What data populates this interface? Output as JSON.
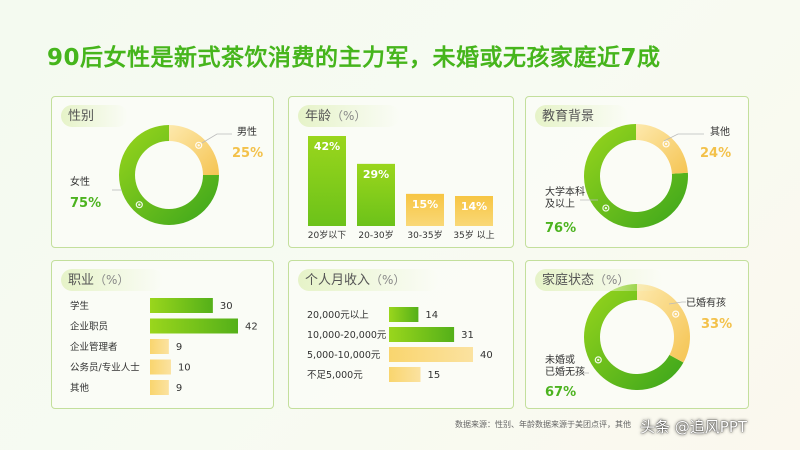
{
  "title": "90后女性是新式茶饮消费的主力军，未婚或无孩家庭近7成",
  "colors": {
    "green_dark": "#3aa51c",
    "green_light": "#9ad61c",
    "yellow_light": "#fde9ad",
    "yellow_dark": "#f5c452",
    "green_text": "#4cb31f",
    "yellow_text": "#f3c14a"
  },
  "chart_data": [
    {
      "id": "gender",
      "type": "pie",
      "title": "性别",
      "unit": "",
      "slices": [
        {
          "label": "男性",
          "value": 25,
          "display": "25%"
        },
        {
          "label": "女性",
          "value": 75,
          "display": "75%"
        }
      ]
    },
    {
      "id": "age",
      "type": "bar",
      "title": "年龄",
      "unit": "（%）",
      "categories": [
        "20岁以下",
        "20-30岁",
        "30-35岁",
        "35岁 以上"
      ],
      "values": [
        42,
        29,
        15,
        14
      ],
      "labels": [
        "42%",
        "29%",
        "15%",
        "14%"
      ]
    },
    {
      "id": "education",
      "type": "pie",
      "title": "教育背景",
      "unit": "",
      "slices": [
        {
          "label": "其他",
          "value": 24,
          "display": "24%"
        },
        {
          "label": "大学本科\n及以上",
          "value": 76,
          "display": "76%"
        }
      ]
    },
    {
      "id": "occupation",
      "type": "bar",
      "orientation": "horizontal",
      "title": "职业",
      "unit": "（%）",
      "categories": [
        "学生",
        "企业职员",
        "企业管理者",
        "公务员/专业人士",
        "其他"
      ],
      "values": [
        30,
        42,
        9,
        10,
        9
      ],
      "highlight": [
        true,
        true,
        false,
        false,
        false
      ]
    },
    {
      "id": "income",
      "type": "bar",
      "orientation": "horizontal",
      "title": "个人月收入",
      "unit": "（%）",
      "categories": [
        "20,000元以上",
        "10,000-20,000元",
        "5,000-10,000元",
        "不足5,000元"
      ],
      "values": [
        14,
        31,
        40,
        15
      ],
      "highlight": [
        true,
        true,
        false,
        false
      ]
    },
    {
      "id": "family",
      "type": "pie",
      "title": "家庭状态",
      "unit": "（%）",
      "slices": [
        {
          "label": "已婚有孩",
          "value": 33,
          "display": "33%"
        },
        {
          "label": "未婚或\n已婚无孩",
          "value": 67,
          "display": "67%"
        }
      ]
    }
  ],
  "footer": {
    "source": "数据来源：性别、年龄数据来源于美团点评，其他",
    "watermark": "头条 @追风PPT"
  }
}
